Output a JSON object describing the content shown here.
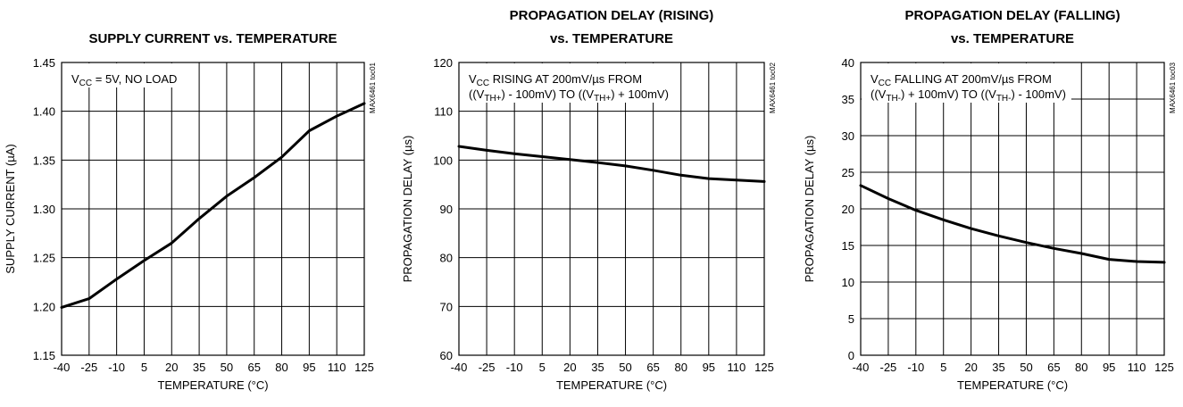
{
  "chart_data": [
    {
      "type": "line",
      "title": [
        "SUPPLY CURRENT vs. TEMPERATURE"
      ],
      "xlabel": "TEMPERATURE (°C)",
      "ylabel": "SUPPLY CURRENT (µA)",
      "code": "MAX6461 toc01",
      "xlim": [
        -40,
        125
      ],
      "ylim": [
        1.15,
        1.45
      ],
      "xticks": [
        "-40",
        "-25",
        "-10",
        "5",
        "20",
        "35",
        "50",
        "65",
        "80",
        "95",
        "110",
        "125"
      ],
      "yticks": [
        "1.15",
        "1.20",
        "1.25",
        "1.30",
        "1.35",
        "1.40",
        "1.45"
      ],
      "annotation": [
        [
          {
            "t": "V"
          },
          {
            "t": "CC",
            "sub": true
          },
          {
            "t": " = 5V, NO LOAD"
          }
        ]
      ],
      "grid": true,
      "series": [
        {
          "x": [
            -40,
            -25,
            -10,
            5,
            20,
            35,
            50,
            65,
            80,
            95,
            110,
            125
          ],
          "y": [
            1.199,
            1.208,
            1.228,
            1.247,
            1.265,
            1.29,
            1.313,
            1.332,
            1.353,
            1.38,
            1.395,
            1.408
          ]
        }
      ]
    },
    {
      "type": "line",
      "title": [
        "PROPAGATION DELAY (RISING)",
        "vs. TEMPERATURE"
      ],
      "xlabel": "TEMPERATURE (°C)",
      "ylabel": "PROPAGATION DELAY (µs)",
      "code": "MAX6461 toc02",
      "xlim": [
        -40,
        125
      ],
      "ylim": [
        60,
        120
      ],
      "xticks": [
        "-40",
        "-25",
        "-10",
        "5",
        "20",
        "35",
        "50",
        "65",
        "80",
        "95",
        "110",
        "125"
      ],
      "yticks": [
        "60",
        "70",
        "80",
        "90",
        "100",
        "110",
        "120"
      ],
      "annotation": [
        [
          {
            "t": "V"
          },
          {
            "t": "CC",
            "sub": true
          },
          {
            "t": " RISING AT 200mV/µs FROM"
          }
        ],
        [
          {
            "t": "((V"
          },
          {
            "t": "TH+",
            "sub": true
          },
          {
            "t": ") - 100mV) TO ((V"
          },
          {
            "t": "TH+",
            "sub": true
          },
          {
            "t": ") + 100mV)"
          }
        ]
      ],
      "grid": true,
      "series": [
        {
          "x": [
            -40,
            -25,
            -10,
            5,
            20,
            35,
            50,
            65,
            80,
            95,
            110,
            125
          ],
          "y": [
            102.8,
            102.0,
            101.3,
            100.7,
            100.1,
            99.5,
            98.8,
            97.9,
            96.9,
            96.2,
            95.9,
            95.6
          ]
        }
      ]
    },
    {
      "type": "line",
      "title": [
        "PROPAGATION DELAY (FALLING)",
        "vs. TEMPERATURE"
      ],
      "xlabel": "TEMPERATURE (°C)",
      "ylabel": "PROPAGATION DELAY (µs)",
      "code": "MAX6461 toc03",
      "xlim": [
        -40,
        125
      ],
      "ylim": [
        0,
        40
      ],
      "xticks": [
        "-40",
        "-25",
        "-10",
        "5",
        "20",
        "35",
        "50",
        "65",
        "80",
        "95",
        "110",
        "125"
      ],
      "yticks": [
        "0",
        "5",
        "10",
        "15",
        "20",
        "25",
        "30",
        "35",
        "40"
      ],
      "annotation": [
        [
          {
            "t": "V"
          },
          {
            "t": "CC",
            "sub": true
          },
          {
            "t": " FALLING AT 200mV/µs FROM"
          }
        ],
        [
          {
            "t": "((V"
          },
          {
            "t": "TH-",
            "sub": true
          },
          {
            "t": ") + 100mV) TO ((V"
          },
          {
            "t": "TH-",
            "sub": true
          },
          {
            "t": ") - 100mV)"
          }
        ]
      ],
      "grid": true,
      "series": [
        {
          "x": [
            -40,
            -25,
            -10,
            5,
            20,
            35,
            50,
            65,
            80,
            95,
            110,
            125
          ],
          "y": [
            23.2,
            21.4,
            19.8,
            18.5,
            17.3,
            16.3,
            15.4,
            14.6,
            13.9,
            13.1,
            12.8,
            12.7
          ]
        }
      ]
    }
  ]
}
